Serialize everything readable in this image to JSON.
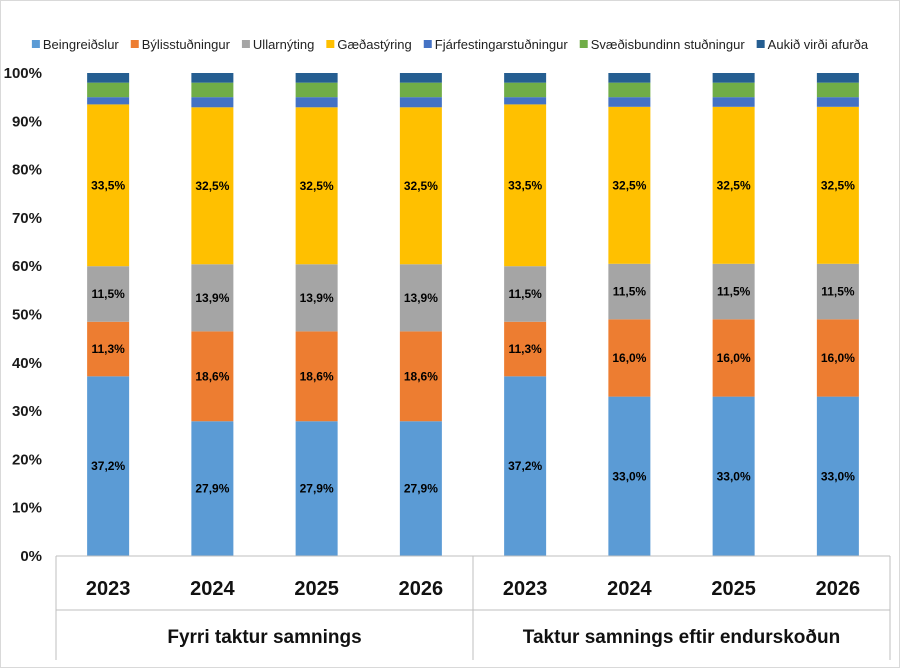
{
  "chart_data": {
    "type": "bar",
    "stacked": true,
    "percent": true,
    "ylim": [
      0,
      100
    ],
    "y_ticks": [
      "0%",
      "10%",
      "20%",
      "30%",
      "40%",
      "50%",
      "60%",
      "70%",
      "80%",
      "90%",
      "100%"
    ],
    "legend_position": "top",
    "groups": [
      {
        "label": "Fyrri taktur samnings",
        "categories": [
          "2023",
          "2024",
          "2025",
          "2026"
        ]
      },
      {
        "label": "Taktur samnings eftir endurskoðun",
        "categories": [
          "2023",
          "2024",
          "2025",
          "2026"
        ]
      }
    ],
    "series": [
      {
        "name": "Beingreiðslur",
        "color": "#5B9BD5",
        "values": [
          37.2,
          27.9,
          27.9,
          27.9,
          37.2,
          33.0,
          33.0,
          33.0
        ],
        "labels": [
          "37,2%",
          "27,9%",
          "27,9%",
          "27,9%",
          "37,2%",
          "33,0%",
          "33,0%",
          "33,0%"
        ]
      },
      {
        "name": "Býlisstuðningur",
        "color": "#ED7D31",
        "values": [
          11.3,
          18.6,
          18.6,
          18.6,
          11.3,
          16.0,
          16.0,
          16.0
        ],
        "labels": [
          "11,3%",
          "18,6%",
          "18,6%",
          "18,6%",
          "11,3%",
          "16,0%",
          "16,0%",
          "16,0%"
        ]
      },
      {
        "name": "Ullarnýting",
        "color": "#A5A5A5",
        "values": [
          11.5,
          13.9,
          13.9,
          13.9,
          11.5,
          11.5,
          11.5,
          11.5
        ],
        "labels": [
          "11,5%",
          "13,9%",
          "13,9%",
          "13,9%",
          "11,5%",
          "11,5%",
          "11,5%",
          "11,5%"
        ]
      },
      {
        "name": "Gæðastýring",
        "color": "#FFC000",
        "values": [
          33.5,
          32.5,
          32.5,
          32.5,
          33.5,
          32.5,
          32.5,
          32.5
        ],
        "labels": [
          "33,5%",
          "32,5%",
          "32,5%",
          "32,5%",
          "33,5%",
          "32,5%",
          "32,5%",
          "32,5%"
        ]
      },
      {
        "name": "Fjárfestingarstuðningur",
        "color": "#4472C4",
        "values": [
          1.5,
          2.1,
          2.1,
          2.1,
          1.5,
          2.0,
          2.0,
          2.0
        ]
      },
      {
        "name": "Svæðisbundinn stuðningur",
        "color": "#70AD47",
        "values": [
          3.0,
          3.0,
          3.0,
          3.0,
          3.0,
          3.0,
          3.0,
          3.0
        ]
      },
      {
        "name": "Aukið virði afurða",
        "color": "#255E91",
        "values": [
          2.0,
          2.0,
          2.0,
          2.0,
          2.0,
          2.0,
          2.0,
          2.0
        ]
      }
    ]
  }
}
